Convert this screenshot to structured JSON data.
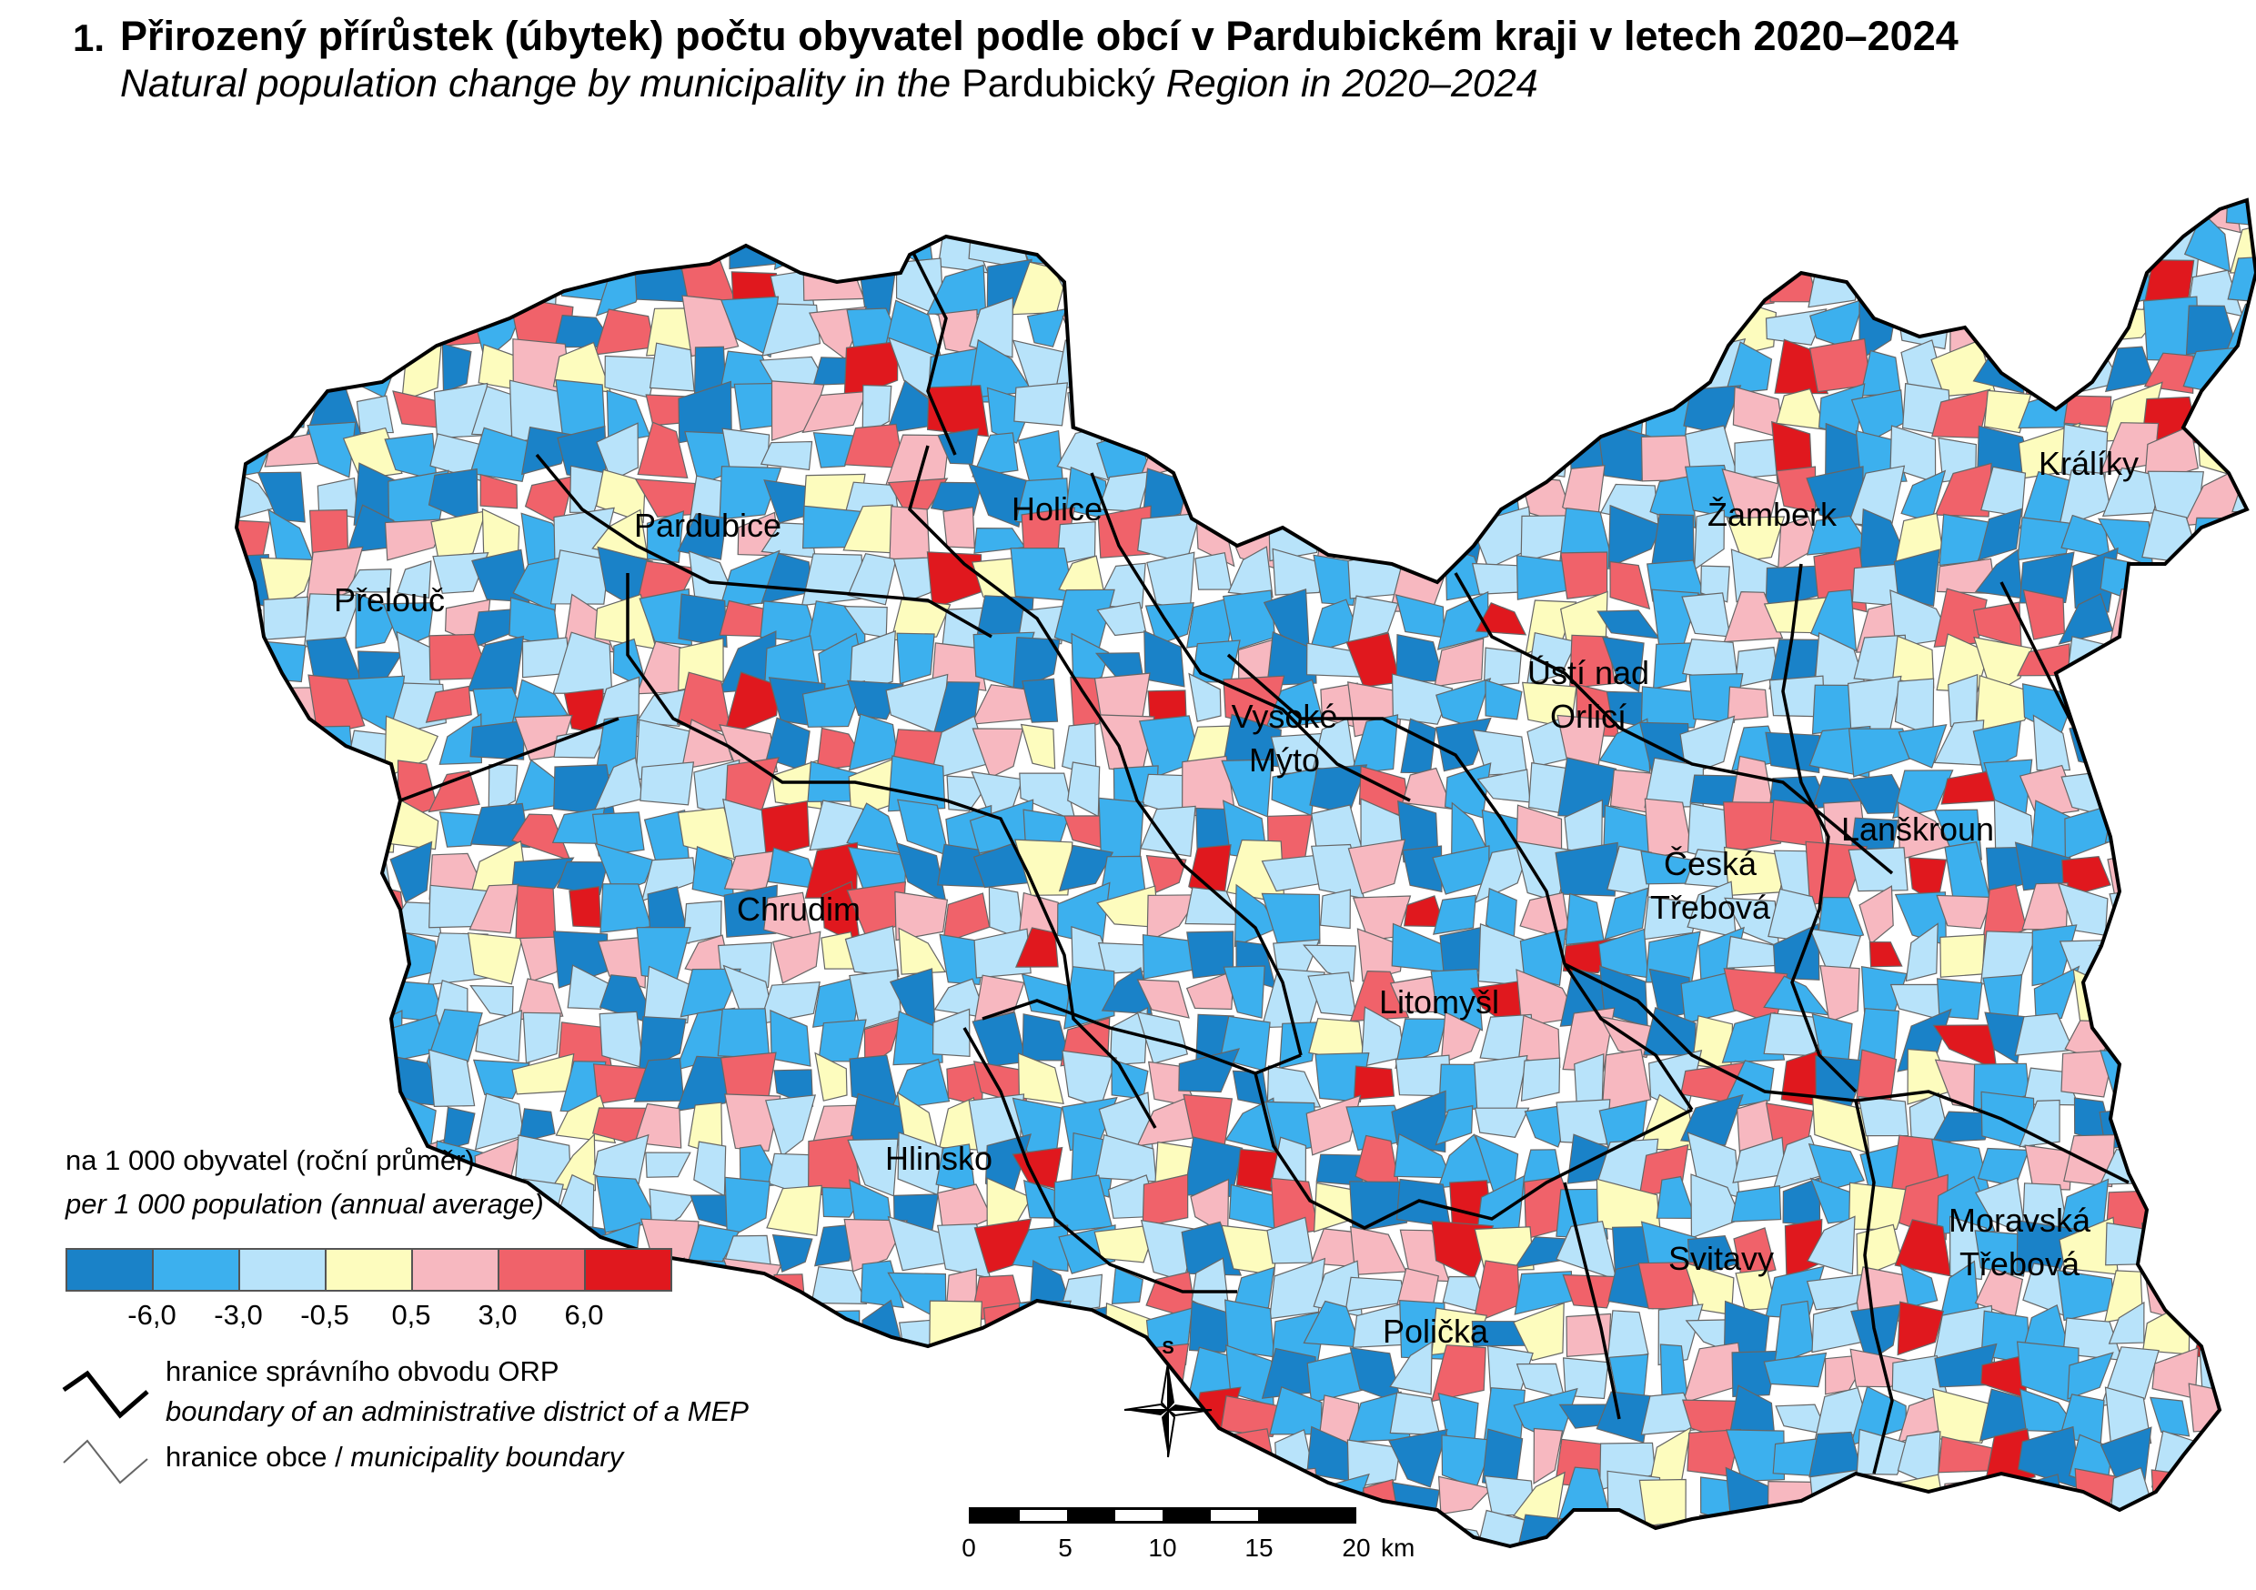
{
  "title": {
    "number": "1.",
    "cz": "Přirozený přírůstek (úbytek) počtu obyvatel podle obcí v Pardubickém kraji v letech 2020–2024",
    "en_part1": "Natural population change by municipality in the",
    "en_part2": "Pardubický",
    "en_part3": "Region in 2020–2024"
  },
  "cities": [
    {
      "id": "pardubice",
      "label": "Pardubice"
    },
    {
      "id": "holice",
      "label": "Holice"
    },
    {
      "id": "prelouc",
      "label": "Přelouč"
    },
    {
      "id": "zamberk",
      "label": "Žamberk"
    },
    {
      "id": "kraliky",
      "label": "Králíky"
    },
    {
      "id": "usti-1",
      "label": "Ústí nad"
    },
    {
      "id": "usti-2",
      "label": "Orlicí"
    },
    {
      "id": "vysoke-1",
      "label": "Vysoké"
    },
    {
      "id": "vysoke-2",
      "label": "Mýto"
    },
    {
      "id": "lanskroun",
      "label": "Lanškroun"
    },
    {
      "id": "ceska-1",
      "label": "Česká"
    },
    {
      "id": "ceska-2",
      "label": "Třebová"
    },
    {
      "id": "chrudim",
      "label": "Chrudim"
    },
    {
      "id": "litomysl",
      "label": "Litomyšl"
    },
    {
      "id": "hlinsko",
      "label": "Hlinsko"
    },
    {
      "id": "moravska-1",
      "label": "Moravská"
    },
    {
      "id": "moravska-2",
      "label": "Třebová"
    },
    {
      "id": "svitavy",
      "label": "Svitavy"
    },
    {
      "id": "policka",
      "label": "Polička"
    }
  ],
  "legend": {
    "unit_cz": "na 1 000 obyvatel (roční průměr)",
    "unit_en": "per 1 000 population (annual average)",
    "classes": [
      {
        "color": "#1a82c8"
      },
      {
        "color": "#3cb0ee"
      },
      {
        "color": "#b8e3fa"
      },
      {
        "color": "#fdfcbe"
      },
      {
        "color": "#f7b8c0"
      },
      {
        "color": "#f0626a"
      },
      {
        "color": "#e0181e"
      }
    ],
    "breaks": [
      "-6,0",
      "-3,0",
      "-0,5",
      "0,5",
      "3,0",
      "6,0"
    ],
    "orp_boundary_cz": "hranice správního obvodu ORP",
    "orp_boundary_en": "boundary of an administrative district of a MEP",
    "muni_boundary_cz": "hranice obce /",
    "muni_boundary_en": "municipality boundary"
  },
  "north_arrow": {
    "label": "S"
  },
  "scale": {
    "ticks": [
      "0",
      "5",
      "10",
      "15",
      "20"
    ],
    "unit": "km"
  }
}
